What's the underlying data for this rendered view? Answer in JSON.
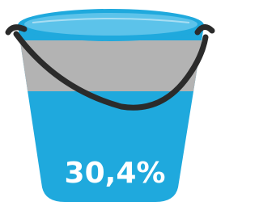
{
  "label": "30,4%"
}
